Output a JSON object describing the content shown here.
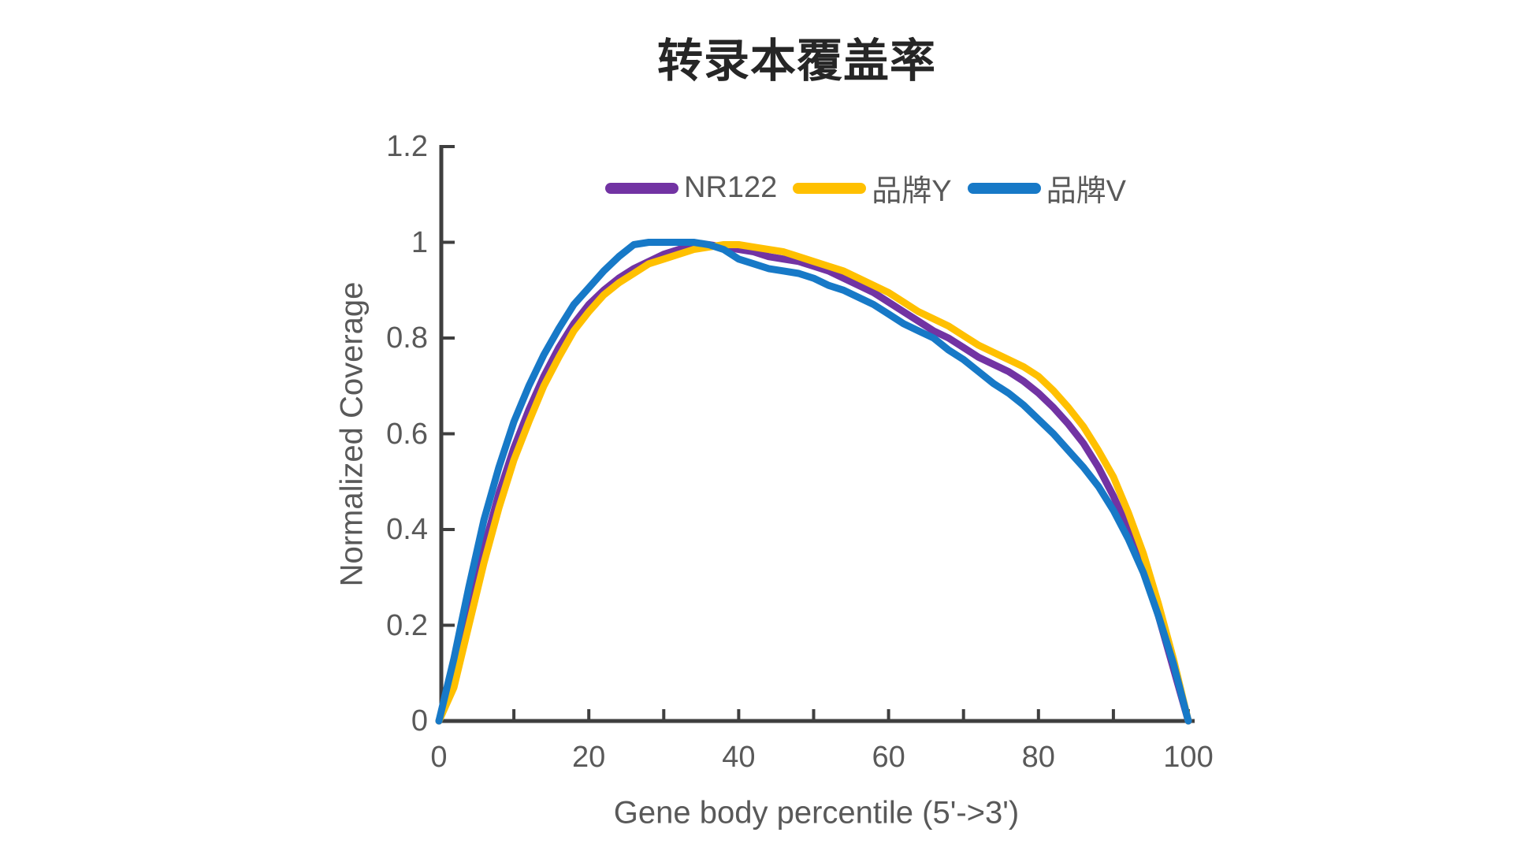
{
  "title": "转录本覆盖率",
  "colors": {
    "title_text": "#262626",
    "axis_line": "#3F3F3F",
    "tick_label": "#595959",
    "background": "#FFFFFF"
  },
  "chart_data": {
    "type": "line",
    "title": "转录本覆盖率",
    "xlabel": "Gene body percentile (5'->3')",
    "ylabel": "Normalized Coverage",
    "xlim": [
      0,
      100
    ],
    "ylim": [
      0,
      1.2
    ],
    "grid": false,
    "legend_position": "top-center",
    "x_tick_labels": [
      "0",
      "20",
      "40",
      "60",
      "80",
      "100"
    ],
    "x_ticks": [
      0,
      20,
      40,
      60,
      80,
      100
    ],
    "x_minor_tick_step": 10,
    "y_tick_labels": [
      "0",
      "0.2",
      "0.4",
      "0.6",
      "0.8",
      "1",
      "1.2"
    ],
    "y_ticks": [
      0,
      0.2,
      0.4,
      0.6,
      0.8,
      1,
      1.2
    ],
    "x": [
      0,
      2,
      4,
      6,
      8,
      10,
      12,
      14,
      16,
      18,
      20,
      22,
      24,
      26,
      28,
      30,
      32,
      34,
      36,
      38,
      40,
      42,
      44,
      46,
      48,
      50,
      52,
      54,
      56,
      58,
      60,
      62,
      64,
      66,
      68,
      70,
      72,
      74,
      76,
      78,
      80,
      82,
      84,
      86,
      88,
      90,
      92,
      94,
      96,
      98,
      100
    ],
    "series": [
      {
        "name": "NR122",
        "color": "#7233A3",
        "values": [
          0,
          0.09,
          0.23,
          0.36,
          0.475,
          0.57,
          0.65,
          0.72,
          0.78,
          0.83,
          0.87,
          0.9,
          0.925,
          0.945,
          0.96,
          0.975,
          0.985,
          0.99,
          0.995,
          0.99,
          0.985,
          0.98,
          0.97,
          0.965,
          0.96,
          0.95,
          0.94,
          0.925,
          0.91,
          0.895,
          0.875,
          0.855,
          0.835,
          0.815,
          0.8,
          0.78,
          0.76,
          0.745,
          0.73,
          0.71,
          0.685,
          0.655,
          0.62,
          0.58,
          0.53,
          0.47,
          0.4,
          0.32,
          0.22,
          0.11,
          0
        ]
      },
      {
        "name": "品牌Y",
        "color": "#FFC000",
        "values": [
          0,
          0.07,
          0.2,
          0.33,
          0.445,
          0.545,
          0.625,
          0.7,
          0.76,
          0.815,
          0.855,
          0.89,
          0.915,
          0.935,
          0.955,
          0.965,
          0.975,
          0.985,
          0.99,
          0.995,
          0.995,
          0.99,
          0.985,
          0.98,
          0.97,
          0.96,
          0.95,
          0.94,
          0.925,
          0.91,
          0.895,
          0.875,
          0.855,
          0.84,
          0.825,
          0.805,
          0.785,
          0.77,
          0.755,
          0.74,
          0.72,
          0.69,
          0.655,
          0.615,
          0.565,
          0.51,
          0.435,
          0.35,
          0.245,
          0.13,
          0
        ]
      },
      {
        "name": "品牌V",
        "color": "#1779C7",
        "values": [
          0,
          0.13,
          0.28,
          0.42,
          0.53,
          0.625,
          0.7,
          0.765,
          0.82,
          0.87,
          0.905,
          0.94,
          0.97,
          0.995,
          1.0,
          1.0,
          1.0,
          1.0,
          0.995,
          0.985,
          0.965,
          0.955,
          0.945,
          0.94,
          0.935,
          0.925,
          0.91,
          0.9,
          0.885,
          0.87,
          0.85,
          0.83,
          0.815,
          0.8,
          0.775,
          0.755,
          0.73,
          0.705,
          0.685,
          0.66,
          0.63,
          0.6,
          0.565,
          0.53,
          0.49,
          0.44,
          0.38,
          0.31,
          0.22,
          0.12,
          0
        ]
      }
    ]
  }
}
